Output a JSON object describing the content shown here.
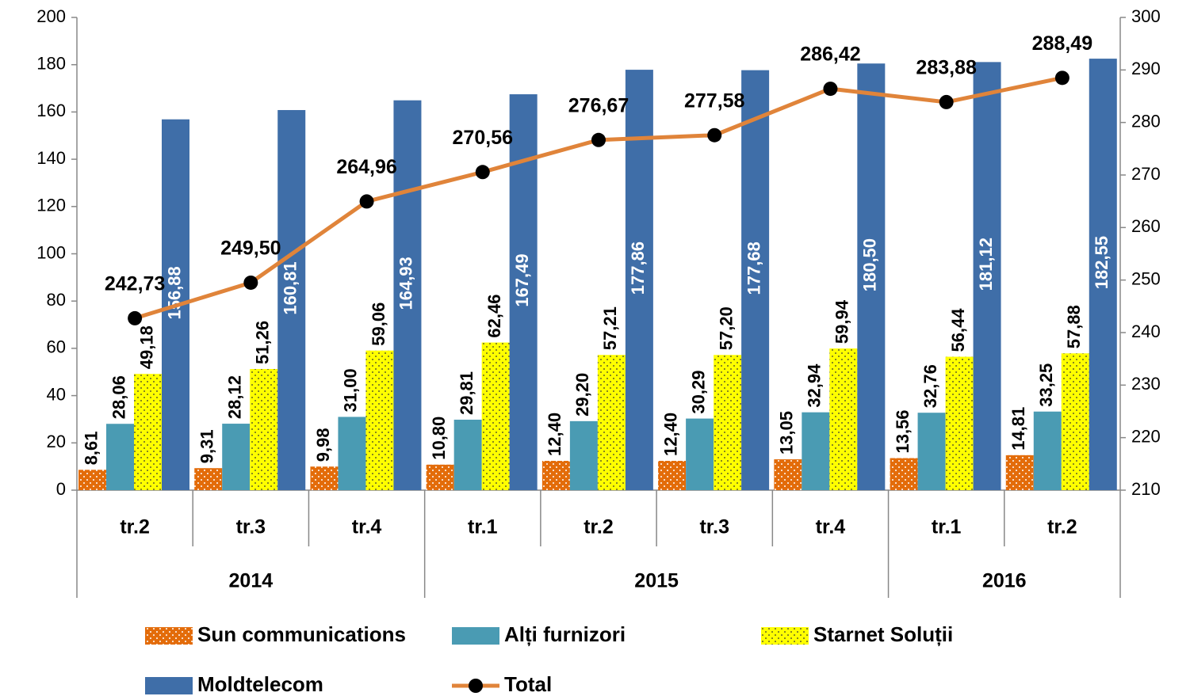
{
  "chart_data": {
    "type": "bar",
    "categories": [
      "tr.2",
      "tr.3",
      "tr.4",
      "tr.1",
      "tr.2",
      "tr.3",
      "tr.4",
      "tr.1",
      "tr.2"
    ],
    "groups": [
      {
        "label": "2014",
        "count": 3
      },
      {
        "label": "2015",
        "count": 4
      },
      {
        "label": "2016",
        "count": 2
      }
    ],
    "series": [
      {
        "name": "Sun communications",
        "color": "#E36C0A",
        "pattern": "dots-white",
        "values": [
          8.61,
          9.31,
          9.98,
          10.8,
          12.4,
          12.4,
          13.05,
          13.56,
          14.81
        ],
        "value_labels": [
          "8,61",
          "9,31",
          "9,98",
          "10,80",
          "12,40",
          "12,40",
          "13,05",
          "13,56",
          "14,81"
        ]
      },
      {
        "name": "Alți furnizori",
        "color": "#4A9BB3",
        "values": [
          28.06,
          28.12,
          31.0,
          29.81,
          29.2,
          30.29,
          32.94,
          32.76,
          33.25
        ],
        "value_labels": [
          "28,06",
          "28,12",
          "31,00",
          "29,81",
          "29,20",
          "30,29",
          "32,94",
          "32,76",
          "33,25"
        ]
      },
      {
        "name": "Starnet Soluții",
        "color": "#FFFF00",
        "pattern": "dots-black",
        "values": [
          49.18,
          51.26,
          59.06,
          62.46,
          57.21,
          57.2,
          59.94,
          56.44,
          57.88
        ],
        "value_labels": [
          "49,18",
          "51,26",
          "59,06",
          "62,46",
          "57,21",
          "57,20",
          "59,94",
          "56,44",
          "57,88"
        ]
      },
      {
        "name": "Moldtelecom",
        "color": "#3F6EA8",
        "values": [
          156.88,
          160.81,
          164.93,
          167.49,
          177.86,
          177.68,
          180.5,
          181.12,
          182.55
        ],
        "value_labels": [
          "156,88",
          "160,81",
          "164,93",
          "167,49",
          "177,86",
          "177,68",
          "180,50",
          "181,12",
          "182,55"
        ]
      },
      {
        "name": "Total",
        "color": "#E0843A",
        "type": "line",
        "axis": "y2",
        "marker_color": "#000000",
        "values": [
          242.73,
          249.5,
          264.96,
          270.56,
          276.67,
          277.58,
          286.42,
          283.88,
          288.49
        ],
        "value_labels": [
          "242,73",
          "249,50",
          "264,96",
          "270,56",
          "276,67",
          "277,58",
          "286,42",
          "283,88",
          "288,49"
        ]
      }
    ],
    "ylim": [
      0,
      200
    ],
    "yticks": [
      0,
      20,
      40,
      60,
      80,
      100,
      120,
      140,
      160,
      180,
      200
    ],
    "y2lim": [
      210,
      300
    ],
    "y2ticks": [
      210,
      220,
      230,
      240,
      250,
      260,
      270,
      280,
      290,
      300
    ],
    "grid": false
  }
}
